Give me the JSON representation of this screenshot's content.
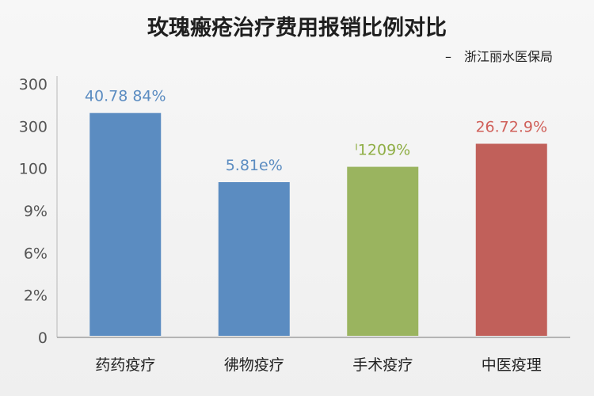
{
  "chart_data": {
    "type": "bar",
    "title": "玫瑰瘢疮治疗费用报销比例对比",
    "subtitle": "–　浙江丽水医保局",
    "categories": [
      "药药疫疗",
      "彿物疫疗",
      "手术疫疗",
      "中医疫理"
    ],
    "values": [
      290,
      200,
      220,
      250
    ],
    "data_labels": [
      "40.78 84%",
      "5.81е%",
      "ᴵ1209%",
      "26.72.9%"
    ],
    "y_tick_labels": [
      "0",
      "2%",
      "6%",
      "9%",
      "100",
      "300",
      "300"
    ],
    "ylim": [
      0,
      300
    ],
    "colors": [
      "#5b8cc1",
      "#5b8cc1",
      "#9ab45f",
      "#c1605a"
    ],
    "label_colors": [
      "#5b8cc1",
      "#5b8cc1",
      "#8fae45",
      "#d0605a"
    ],
    "grid": false,
    "legend": "none"
  }
}
